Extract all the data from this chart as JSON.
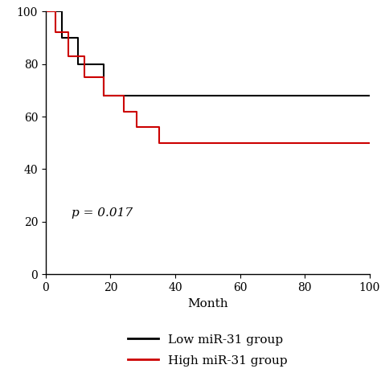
{
  "black_x": [
    0,
    5,
    5,
    10,
    10,
    18,
    18,
    37,
    37,
    100
  ],
  "black_y": [
    100,
    100,
    90,
    90,
    80,
    80,
    68,
    68,
    68,
    68
  ],
  "red_x": [
    0,
    3,
    3,
    7,
    7,
    12,
    12,
    18,
    18,
    24,
    24,
    28,
    28,
    35,
    35,
    38,
    38,
    100
  ],
  "red_y": [
    100,
    100,
    92,
    92,
    83,
    83,
    75,
    75,
    68,
    68,
    62,
    62,
    56,
    56,
    50,
    50,
    50,
    50
  ],
  "xlabel": "Month",
  "xlim": [
    0,
    100
  ],
  "ylim": [
    0,
    100
  ],
  "xticks": [
    0,
    20,
    40,
    60,
    80,
    100
  ],
  "yticks": [
    0,
    20,
    40,
    60,
    80,
    100
  ],
  "p_text": "p = 0.017",
  "p_x": 8,
  "p_y": 22,
  "legend_labels": [
    "Low miR-31 group",
    "High miR-31 group"
  ],
  "legend_colors": [
    "#000000",
    "#cc0000"
  ],
  "black_color": "#000000",
  "red_color": "#cc0000",
  "background_color": "#ffffff",
  "linewidth": 1.5,
  "fontsize_label": 11,
  "fontsize_tick": 10,
  "fontsize_pval": 11,
  "fontsize_legend": 11
}
